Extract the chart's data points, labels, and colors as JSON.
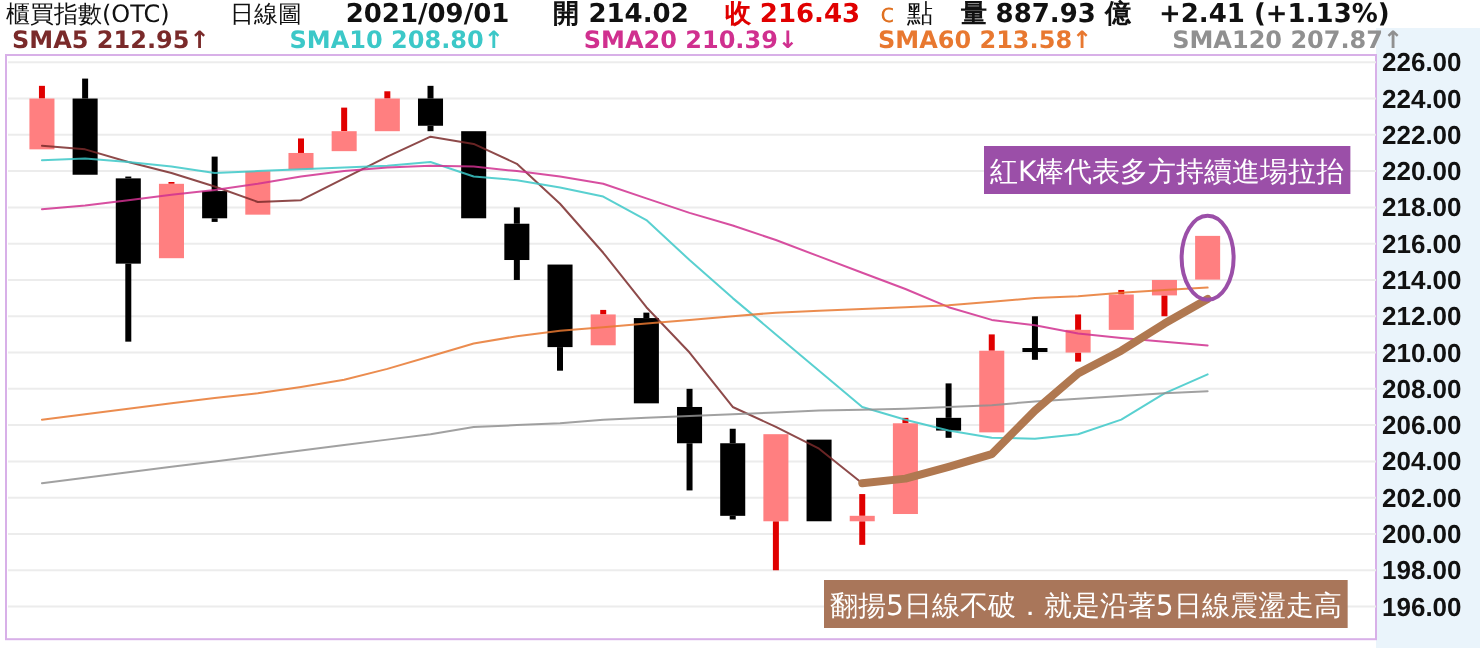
{
  "chart_data": {
    "type": "candlestick",
    "title": "櫃買指數(OTC)",
    "subtitle": "日線圖",
    "annotations": [
      "2021/09/01",
      "開 214.02",
      "收 216.43",
      "c",
      "點",
      "量 887.93 億",
      "+2.41 (+1.13%)",
      "紅K棒代表多方持續進場拉抬",
      "翻揚5日線不破．就是沿著5日線震盪走高"
    ],
    "categories": [
      null,
      null,
      null,
      null,
      null,
      null,
      null,
      null,
      null,
      null,
      null,
      null,
      null,
      null,
      null,
      null,
      null,
      null,
      null,
      null,
      null,
      null,
      null,
      null,
      null,
      null,
      null,
      null
    ],
    "ohlc": [
      [
        221.2,
        224.7,
        221.2,
        224.0
      ],
      [
        224.0,
        225.1,
        219.8,
        219.8
      ],
      [
        219.6,
        219.7,
        210.6,
        214.9
      ],
      [
        215.2,
        219.4,
        215.2,
        219.3
      ],
      [
        218.9,
        220.8,
        217.2,
        217.4
      ],
      [
        217.6,
        220.0,
        217.6,
        220.0
      ],
      [
        220.1,
        221.8,
        220.1,
        221.0
      ],
      [
        221.1,
        223.5,
        221.1,
        222.2
      ],
      [
        222.2,
        224.4,
        222.2,
        224.0
      ],
      [
        224.0,
        224.7,
        222.2,
        222.5
      ],
      [
        222.2,
        222.2,
        217.4,
        217.4
      ],
      [
        217.1,
        218.0,
        214.0,
        215.1
      ],
      [
        214.85,
        214.85,
        209.0,
        210.3
      ],
      [
        210.4,
        212.35,
        210.4,
        212.1
      ],
      [
        211.9,
        212.2,
        207.2,
        207.2
      ],
      [
        207.0,
        208.0,
        202.4,
        205.0
      ],
      [
        205.0,
        205.8,
        200.8,
        201.0
      ],
      [
        200.7,
        205.5,
        198.0,
        205.5
      ],
      [
        205.2,
        205.2,
        200.7,
        200.7
      ],
      [
        200.7,
        202.2,
        199.4,
        201.0
      ],
      [
        201.1,
        206.4,
        201.1,
        206.1
      ],
      [
        206.4,
        208.3,
        205.3,
        205.7
      ],
      [
        205.6,
        211.0,
        205.6,
        210.1
      ],
      [
        210.25,
        212.0,
        209.6,
        210.1
      ],
      [
        210.0,
        212.1,
        209.5,
        211.25
      ],
      [
        211.25,
        213.45,
        211.25,
        213.2
      ],
      [
        213.15,
        214.0,
        212.0,
        214.0
      ],
      [
        214.02,
        216.43,
        214.02,
        216.43
      ]
    ],
    "series": [
      {
        "type": "line",
        "name": "SMA5 212.95↑",
        "color": "#7a2a2a",
        "values": [
          221.4,
          221.2,
          220.5,
          219.9,
          219.15,
          218.3,
          218.4,
          219.6,
          220.8,
          221.9,
          221.5,
          220.4,
          218.2,
          215.5,
          212.5,
          210.0,
          207.0,
          205.9,
          204.7,
          202.8,
          203.05,
          203.7,
          204.4,
          206.8,
          208.85,
          210.1,
          211.6,
          212.95
        ]
      },
      {
        "type": "line",
        "name": "SMA10 208.80↑",
        "color": "#3cc8c8",
        "values": [
          220.6,
          220.7,
          220.5,
          220.25,
          219.9,
          220.0,
          220.1,
          220.2,
          220.3,
          220.5,
          219.7,
          219.5,
          219.1,
          218.6,
          217.3,
          215.1,
          213.0,
          211.0,
          209.0,
          207.0,
          206.3,
          205.7,
          205.3,
          205.25,
          205.5,
          206.3,
          207.75,
          208.8
        ]
      },
      {
        "type": "line",
        "name": "SMA20 210.39↓",
        "color": "#d0308f",
        "values": [
          217.9,
          218.1,
          218.4,
          218.7,
          218.96,
          219.3,
          219.7,
          220.0,
          220.2,
          220.3,
          220.25,
          220.0,
          219.7,
          219.3,
          218.5,
          217.7,
          217.0,
          216.2,
          215.3,
          214.4,
          213.5,
          212.5,
          211.8,
          211.5,
          211.05,
          210.8,
          210.6,
          210.39
        ]
      },
      {
        "type": "line",
        "name": "SMA60 213.58↑",
        "color": "#e87830",
        "values": [
          206.3,
          206.6,
          206.9,
          207.2,
          207.5,
          207.75,
          208.1,
          208.5,
          209.1,
          209.8,
          210.5,
          210.9,
          211.2,
          211.4,
          211.6,
          211.8,
          212.0,
          212.2,
          212.3,
          212.4,
          212.5,
          212.6,
          212.8,
          213.0,
          213.1,
          213.3,
          213.45,
          213.58
        ]
      },
      {
        "type": "line",
        "name": "SMA120 207.87↑",
        "color": "#909090",
        "values": [
          202.8,
          203.1,
          203.4,
          203.7,
          204.0,
          204.3,
          204.6,
          204.9,
          205.2,
          205.5,
          205.9,
          206.0,
          206.1,
          206.3,
          206.4,
          206.5,
          206.6,
          206.7,
          206.8,
          206.85,
          206.9,
          207.0,
          207.1,
          207.3,
          207.45,
          207.6,
          207.75,
          207.87
        ]
      },
      {
        "type": "line",
        "color": "#b07850",
        "values": [
          null,
          null,
          null,
          null,
          null,
          null,
          null,
          null,
          null,
          null,
          null,
          null,
          null,
          null,
          null,
          null,
          null,
          null,
          null,
          202.8,
          203.05,
          203.7,
          204.4,
          206.8,
          208.85,
          210.1,
          211.6,
          212.95
        ]
      }
    ],
    "ylim": [
      194.2,
      226.4
    ],
    "yticks": [
      {
        "value": 196,
        "label": "196.00"
      },
      {
        "value": 198,
        "label": "198.00"
      },
      {
        "value": 200,
        "label": "200.00"
      },
      {
        "value": 202,
        "label": "202.00"
      },
      {
        "value": 204,
        "label": "204.00"
      },
      {
        "value": 206,
        "label": "206.00"
      },
      {
        "value": 208,
        "label": "208.00"
      },
      {
        "value": 210,
        "label": "210.00"
      },
      {
        "value": 212,
        "label": "212.00"
      },
      {
        "value": 214,
        "label": "214.00"
      },
      {
        "value": 216,
        "label": "216.00"
      },
      {
        "value": 218,
        "label": "218.00"
      },
      {
        "value": 220,
        "label": "220.00"
      },
      {
        "value": 222,
        "label": "222.00"
      },
      {
        "value": 224,
        "label": "224.00"
      },
      {
        "value": 226,
        "label": "226.00"
      }
    ],
    "grid": "y",
    "legend": "top"
  }
}
